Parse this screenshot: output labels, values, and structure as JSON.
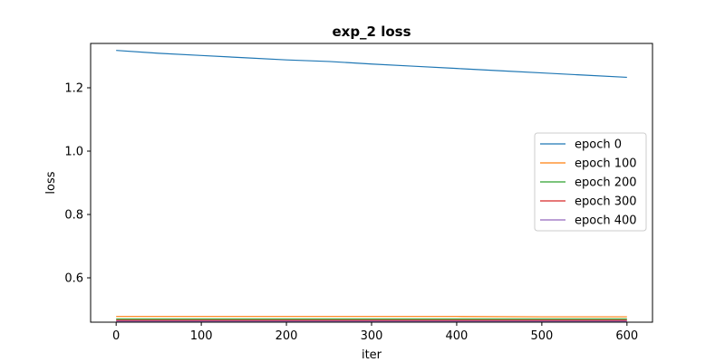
{
  "chart_data": {
    "type": "line",
    "title": "exp_2 loss",
    "xlabel": "iter",
    "ylabel": "loss",
    "xlim": [
      -30,
      630
    ],
    "ylim": [
      0.46,
      1.34
    ],
    "x_ticks": [
      "0",
      "100",
      "200",
      "300",
      "400",
      "500",
      "600"
    ],
    "x_tick_values": [
      0,
      100,
      200,
      300,
      400,
      500,
      600
    ],
    "y_ticks": [
      "0.6",
      "0.8",
      "1.0",
      "1.2"
    ],
    "y_tick_values": [
      0.6,
      0.8,
      1.0,
      1.2
    ],
    "grid": false,
    "legend_position": "center-right",
    "series": [
      {
        "name": "epoch 0",
        "color": "#1f77b4",
        "x": [
          0,
          50,
          100,
          150,
          200,
          250,
          300,
          350,
          400,
          450,
          500,
          550,
          600
        ],
        "y": [
          1.318,
          1.309,
          1.302,
          1.295,
          1.288,
          1.283,
          1.275,
          1.268,
          1.261,
          1.254,
          1.247,
          1.24,
          1.233
        ]
      },
      {
        "name": "epoch 100",
        "color": "#ff7f0e",
        "x": [
          0,
          100,
          200,
          300,
          400,
          500,
          600
        ],
        "y": [
          0.478,
          0.478,
          0.478,
          0.478,
          0.478,
          0.477,
          0.477
        ]
      },
      {
        "name": "epoch 200",
        "color": "#2ca02c",
        "x": [
          0,
          100,
          200,
          300,
          400,
          500,
          600
        ],
        "y": [
          0.47,
          0.47,
          0.47,
          0.47,
          0.47,
          0.47,
          0.47
        ]
      },
      {
        "name": "epoch 300",
        "color": "#d62728",
        "x": [
          0,
          100,
          200,
          300,
          400,
          500,
          600
        ],
        "y": [
          0.466,
          0.466,
          0.466,
          0.466,
          0.466,
          0.466,
          0.466
        ]
      },
      {
        "name": "epoch 400",
        "color": "#9467bd",
        "x": [
          0,
          100,
          200,
          300,
          400,
          500,
          600
        ],
        "y": [
          0.463,
          0.463,
          0.463,
          0.463,
          0.463,
          0.463,
          0.463
        ]
      }
    ]
  }
}
